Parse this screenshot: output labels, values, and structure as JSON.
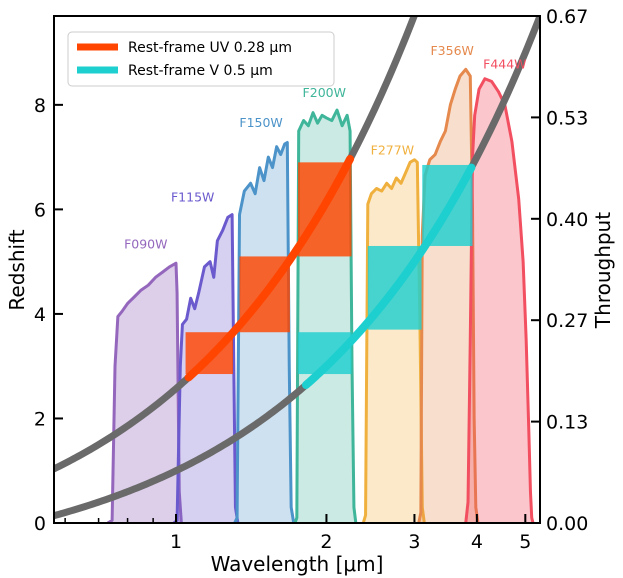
{
  "chart_data": {
    "type": "line",
    "xlabel": "Wavelength [μm]",
    "ylabel": "Redshift",
    "ylabel_right": "Throughput",
    "xscale": "log",
    "xlim": [
      0.57,
      5.35
    ],
    "ylim": [
      0,
      9.7
    ],
    "ylim_right": [
      0,
      0.67
    ],
    "xticks": [
      {
        "v": 1,
        "label": "1"
      },
      {
        "v": 2,
        "label": "2"
      },
      {
        "v": 3,
        "label": "3"
      },
      {
        "v": 4,
        "label": "4"
      },
      {
        "v": 5,
        "label": "5"
      }
    ],
    "yticks": [
      {
        "v": 0,
        "label": "0"
      },
      {
        "v": 2,
        "label": "2"
      },
      {
        "v": 4,
        "label": "4"
      },
      {
        "v": 6,
        "label": "6"
      },
      {
        "v": 8,
        "label": "8"
      }
    ],
    "yticks_right": [
      {
        "v": 0.0,
        "label": "0.00"
      },
      {
        "v": 0.134,
        "label": "0.13"
      },
      {
        "v": 0.268,
        "label": "0.27"
      },
      {
        "v": 0.402,
        "label": "0.40"
      },
      {
        "v": 0.536,
        "label": "0.53"
      },
      {
        "v": 0.67,
        "label": "0.67"
      }
    ],
    "filters": [
      {
        "name": "F090W",
        "color": "#9467bd",
        "fill_opacity": 0.32,
        "label_x": 0.87,
        "label_y": 5.25,
        "points": [
          [
            0.73,
            0
          ],
          [
            0.745,
            0.05
          ],
          [
            0.755,
            3.0
          ],
          [
            0.765,
            3.95
          ],
          [
            0.78,
            4.05
          ],
          [
            0.8,
            4.2
          ],
          [
            0.82,
            4.3
          ],
          [
            0.85,
            4.45
          ],
          [
            0.88,
            4.55
          ],
          [
            0.91,
            4.7
          ],
          [
            0.94,
            4.8
          ],
          [
            0.97,
            4.9
          ],
          [
            1.0,
            4.97
          ],
          [
            1.005,
            4.4
          ],
          [
            1.015,
            0.6
          ],
          [
            1.025,
            0
          ]
        ]
      },
      {
        "name": "F115W",
        "color": "#6a5acd",
        "fill_opacity": 0.28,
        "label_x": 1.08,
        "label_y": 6.15,
        "points": [
          [
            0.99,
            0
          ],
          [
            1.005,
            0.05
          ],
          [
            1.02,
            3.0
          ],
          [
            1.03,
            3.8
          ],
          [
            1.05,
            3.9
          ],
          [
            1.07,
            4.3
          ],
          [
            1.09,
            4.1
          ],
          [
            1.11,
            4.4
          ],
          [
            1.14,
            4.9
          ],
          [
            1.17,
            5.0
          ],
          [
            1.19,
            4.7
          ],
          [
            1.21,
            5.4
          ],
          [
            1.24,
            5.6
          ],
          [
            1.27,
            5.85
          ],
          [
            1.295,
            5.9
          ],
          [
            1.305,
            3.0
          ],
          [
            1.315,
            0.3
          ],
          [
            1.33,
            0
          ]
        ]
      },
      {
        "name": "F150W",
        "color": "#4c93c9",
        "fill_opacity": 0.28,
        "label_x": 1.48,
        "label_y": 7.58,
        "points": [
          [
            1.31,
            0
          ],
          [
            1.325,
            0.1
          ],
          [
            1.34,
            5.9
          ],
          [
            1.37,
            6.35
          ],
          [
            1.41,
            6.5
          ],
          [
            1.44,
            6.3
          ],
          [
            1.47,
            6.8
          ],
          [
            1.5,
            6.55
          ],
          [
            1.53,
            7.0
          ],
          [
            1.56,
            6.8
          ],
          [
            1.59,
            7.2
          ],
          [
            1.62,
            7.05
          ],
          [
            1.65,
            7.25
          ],
          [
            1.67,
            7.28
          ],
          [
            1.685,
            3.0
          ],
          [
            1.7,
            0.3
          ],
          [
            1.72,
            0
          ]
        ]
      },
      {
        "name": "F200W",
        "color": "#3fb59a",
        "fill_opacity": 0.28,
        "label_x": 1.98,
        "label_y": 8.15,
        "points": [
          [
            1.73,
            0
          ],
          [
            1.745,
            0.1
          ],
          [
            1.76,
            7.5
          ],
          [
            1.8,
            7.7
          ],
          [
            1.84,
            7.6
          ],
          [
            1.88,
            7.85
          ],
          [
            1.92,
            7.65
          ],
          [
            1.96,
            7.8
          ],
          [
            2.0,
            7.75
          ],
          [
            2.05,
            7.7
          ],
          [
            2.1,
            7.9
          ],
          [
            2.15,
            7.6
          ],
          [
            2.2,
            7.8
          ],
          [
            2.23,
            7.5
          ],
          [
            2.25,
            3.0
          ],
          [
            2.27,
            0.3
          ],
          [
            2.29,
            0
          ]
        ]
      },
      {
        "name": "F277W",
        "color": "#f0b03d",
        "fill_opacity": 0.28,
        "label_x": 2.71,
        "label_y": 7.05,
        "points": [
          [
            2.37,
            0
          ],
          [
            2.395,
            0.15
          ],
          [
            2.42,
            6.1
          ],
          [
            2.46,
            6.3
          ],
          [
            2.52,
            6.4
          ],
          [
            2.58,
            6.35
          ],
          [
            2.64,
            6.5
          ],
          [
            2.7,
            6.4
          ],
          [
            2.76,
            6.6
          ],
          [
            2.82,
            6.5
          ],
          [
            2.88,
            6.7
          ],
          [
            2.94,
            6.9
          ],
          [
            3.0,
            6.95
          ],
          [
            3.04,
            6.9
          ],
          [
            3.08,
            3.5
          ],
          [
            3.11,
            0.3
          ],
          [
            3.14,
            0
          ]
        ]
      },
      {
        "name": "F356W",
        "color": "#e5894d",
        "fill_opacity": 0.28,
        "label_x": 3.57,
        "label_y": 8.95,
        "points": [
          [
            3.06,
            0
          ],
          [
            3.09,
            0.2
          ],
          [
            3.11,
            5.5
          ],
          [
            3.15,
            6.65
          ],
          [
            3.22,
            6.95
          ],
          [
            3.3,
            7.05
          ],
          [
            3.38,
            7.3
          ],
          [
            3.46,
            7.5
          ],
          [
            3.54,
            8.0
          ],
          [
            3.62,
            8.3
          ],
          [
            3.7,
            8.55
          ],
          [
            3.8,
            8.68
          ],
          [
            3.88,
            8.55
          ],
          [
            3.92,
            6.0
          ],
          [
            3.95,
            2.0
          ],
          [
            3.98,
            0.3
          ],
          [
            4.02,
            0
          ]
        ]
      },
      {
        "name": "F444W",
        "color": "#f24f61",
        "fill_opacity": 0.32,
        "label_x": 4.55,
        "label_y": 8.7,
        "points": [
          [
            3.8,
            0
          ],
          [
            3.84,
            0.4
          ],
          [
            3.88,
            3.5
          ],
          [
            3.92,
            7.0
          ],
          [
            3.96,
            7.8
          ],
          [
            4.04,
            8.3
          ],
          [
            4.15,
            8.5
          ],
          [
            4.28,
            8.45
          ],
          [
            4.42,
            8.25
          ],
          [
            4.55,
            8.0
          ],
          [
            4.7,
            7.3
          ],
          [
            4.85,
            6.2
          ],
          [
            4.95,
            5.0
          ],
          [
            5.02,
            3.5
          ],
          [
            5.08,
            1.8
          ],
          [
            5.12,
            0.6
          ],
          [
            5.15,
            0.1
          ],
          [
            5.18,
            0
          ]
        ]
      }
    ],
    "curves": [
      {
        "name": "Rest-frame UV 0.28 μm",
        "color": "#ff4500",
        "rest_um": 0.28,
        "x_start": 1.06,
        "x_end": 2.23
      },
      {
        "name": "Rest-frame V 0.5 μm",
        "color": "#1ecfcf",
        "rest_um": 0.5,
        "x_start": 1.82,
        "x_end": 3.9
      }
    ],
    "gray_curves": [
      {
        "rest_um": 0.28,
        "color": "#6a6a6a"
      },
      {
        "rest_um": 0.5,
        "color": "#6a6a6a"
      }
    ],
    "boxes": [
      {
        "color": "#ff4500",
        "x1": 1.045,
        "x2": 1.3,
        "y1": 2.85,
        "y2": 3.65
      },
      {
        "color": "#ff4500",
        "x1": 1.34,
        "x2": 1.69,
        "y1": 3.65,
        "y2": 5.1
      },
      {
        "color": "#ff4500",
        "x1": 1.755,
        "x2": 2.245,
        "y1": 5.1,
        "y2": 6.9
      },
      {
        "color": "#1ecfcf",
        "x1": 1.755,
        "x2": 2.245,
        "y1": 2.85,
        "y2": 3.65
      },
      {
        "color": "#1ecfcf",
        "x1": 2.42,
        "x2": 3.1,
        "y1": 3.7,
        "y2": 5.3
      },
      {
        "color": "#1ecfcf",
        "x1": 3.11,
        "x2": 3.92,
        "y1": 5.3,
        "y2": 6.85
      }
    ]
  }
}
